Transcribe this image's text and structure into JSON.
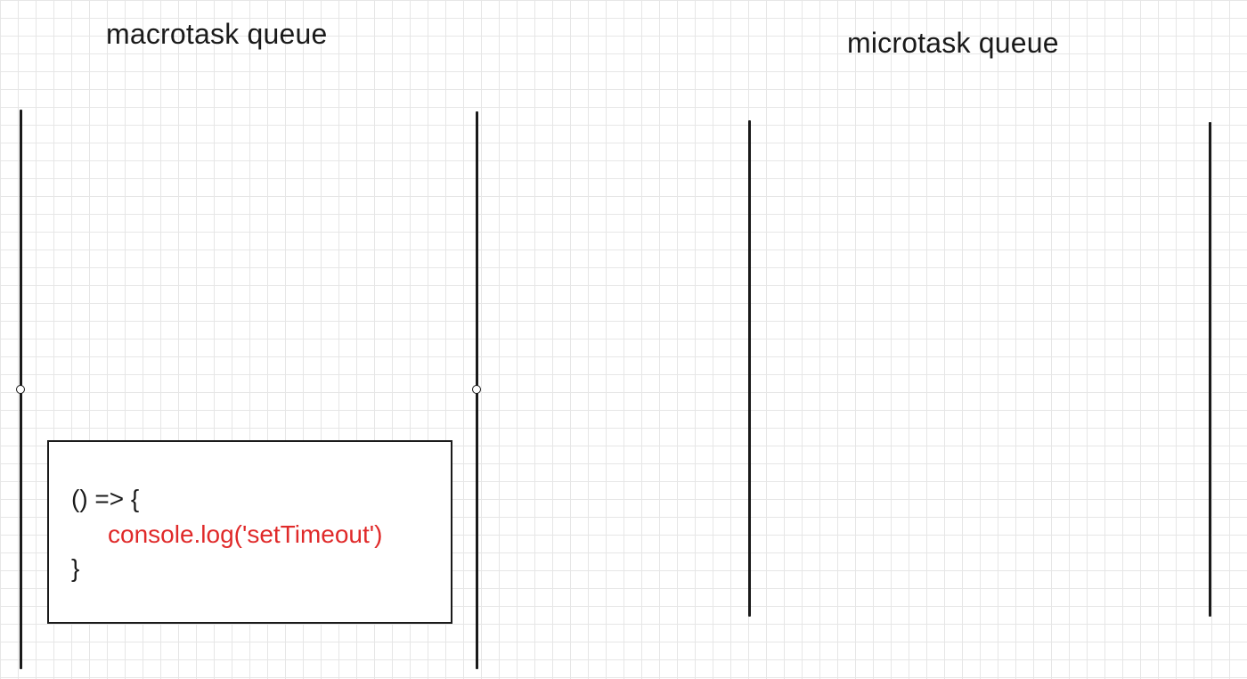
{
  "macrotask": {
    "title": "macrotask queue",
    "task": {
      "line1": "() => {",
      "line2": "console.log('setTimeout')",
      "line3": "}"
    }
  },
  "microtask": {
    "title": "microtask queue"
  },
  "colors": {
    "line": "#1a1a1a",
    "highlight_text": "#e02a2a",
    "grid": "#e6e6e6"
  }
}
